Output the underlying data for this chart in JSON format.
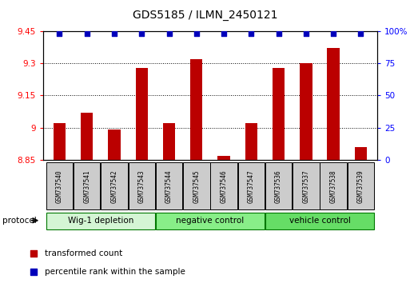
{
  "title": "GDS5185 / ILMN_2450121",
  "samples": [
    "GSM737540",
    "GSM737541",
    "GSM737542",
    "GSM737543",
    "GSM737544",
    "GSM737545",
    "GSM737546",
    "GSM737547",
    "GSM737536",
    "GSM737537",
    "GSM737538",
    "GSM737539"
  ],
  "red_values": [
    9.02,
    9.07,
    8.99,
    9.28,
    9.02,
    9.32,
    8.87,
    9.02,
    9.28,
    9.3,
    9.37,
    8.91
  ],
  "blue_values": [
    98,
    98,
    98,
    98,
    98,
    98,
    98,
    98,
    98,
    98,
    98,
    98
  ],
  "ylim_left": [
    8.85,
    9.45
  ],
  "ylim_right": [
    0,
    100
  ],
  "yticks_left": [
    8.85,
    9.0,
    9.15,
    9.3,
    9.45
  ],
  "yticks_right": [
    0,
    25,
    50,
    75,
    100
  ],
  "ytick_labels_left": [
    "8.85",
    "9",
    "9.15",
    "9.3",
    "9.45"
  ],
  "ytick_labels_right": [
    "0",
    "25",
    "50",
    "75",
    "100%"
  ],
  "groups": [
    {
      "label": "Wig-1 depletion",
      "start": 0,
      "end": 3,
      "color": "#d4f5d4"
    },
    {
      "label": "negative control",
      "start": 4,
      "end": 7,
      "color": "#88ee88"
    },
    {
      "label": "vehicle control",
      "start": 8,
      "end": 11,
      "color": "#66dd66"
    }
  ],
  "bar_color": "#bb0000",
  "dot_color": "#0000bb",
  "base_value": 8.85,
  "legend_red": "transformed count",
  "legend_blue": "percentile rank within the sample",
  "protocol_label": "protocol",
  "bar_width": 0.45,
  "label_box_color": "#cccccc"
}
